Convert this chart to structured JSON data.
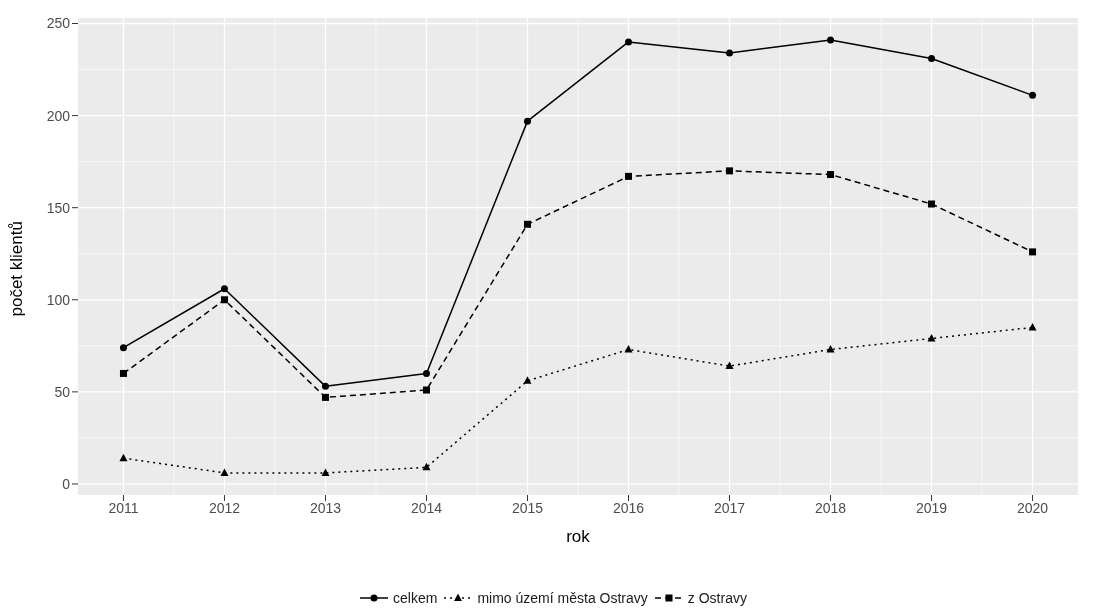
{
  "chart_data": {
    "type": "line",
    "xlabel": "rok",
    "ylabel": "počet klientů",
    "x": [
      2011,
      2012,
      2013,
      2014,
      2015,
      2016,
      2017,
      2018,
      2019,
      2020
    ],
    "series": [
      {
        "name": "celkem",
        "color": "#000000",
        "values": [
          74,
          106,
          53,
          60,
          197,
          240,
          234,
          241,
          231,
          211
        ],
        "marker": "circle",
        "line_style": "solid"
      },
      {
        "name": "mimo území města Ostravy",
        "color": "#000000",
        "values": [
          14,
          6,
          6,
          9,
          56,
          73,
          64,
          73,
          79,
          85
        ],
        "marker": "triangle",
        "line_style": "dotted"
      },
      {
        "name": "z Ostravy",
        "color": "#000000",
        "values": [
          60,
          100,
          47,
          51,
          141,
          167,
          170,
          168,
          152,
          126
        ],
        "marker": "square",
        "line_style": "dashed"
      }
    ],
    "xlim": [
      2010.55,
      2020.45
    ],
    "xticks": [
      2011,
      2012,
      2013,
      2014,
      2015,
      2016,
      2017,
      2018,
      2019,
      2020
    ],
    "ylim": [
      -6,
      253
    ],
    "yticks": [
      0,
      50,
      100,
      150,
      200,
      250
    ],
    "grid": true,
    "legend": "bottom"
  }
}
